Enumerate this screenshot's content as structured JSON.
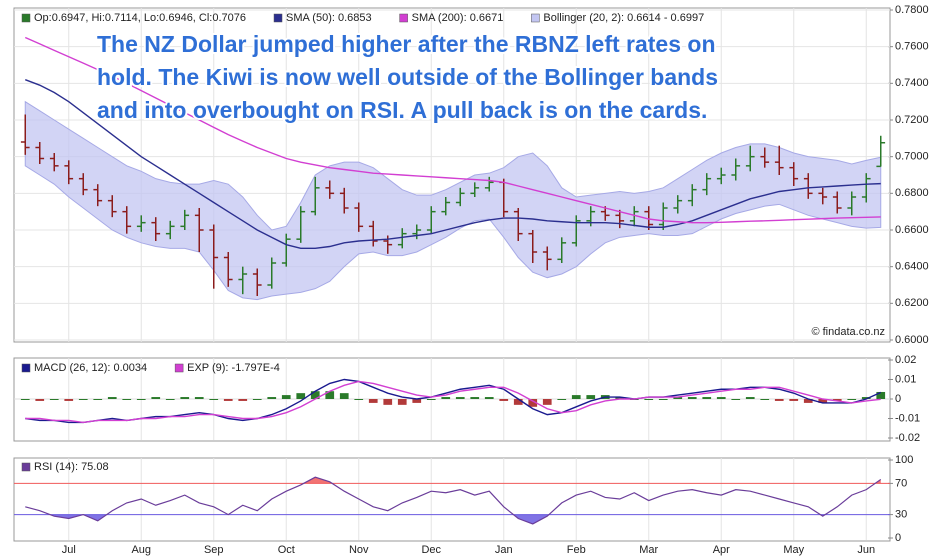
{
  "chart_data": [
    {
      "type": "ohlc",
      "annotations": [
        "The NZ Dollar jumped higher after the RBNZ left rates on",
        "hold. The Kiwi is now well outside of the Bollinger bands",
        "and into overbought on RSI. A pull back is on the cards."
      ],
      "watermark": "© findata.co.nz",
      "down_color": "#8b1c1c",
      "ylim": [
        0.6,
        0.78
      ],
      "yticks": [
        {
          "value": 0.6,
          "label": "0.6000"
        },
        {
          "value": 0.62,
          "label": "0.6200"
        },
        {
          "value": 0.64,
          "label": "0.6400"
        },
        {
          "value": 0.66,
          "label": "0.6600"
        },
        {
          "value": 0.68,
          "label": "0.6800"
        },
        {
          "value": 0.7,
          "label": "0.7000"
        },
        {
          "value": 0.72,
          "label": "0.7200"
        },
        {
          "value": 0.74,
          "label": "0.7400"
        },
        {
          "value": 0.76,
          "label": "0.7600"
        },
        {
          "value": 0.78,
          "label": "0.7800"
        }
      ],
      "grid": true,
      "series": [
        {
          "name": "Op:0.6947, Hi:0.7114, Lo:0.6946, Cl:0.7076",
          "color": "#2a7a2a",
          "open": [
            0.708,
            0.705,
            0.699,
            0.695,
            0.688,
            0.682,
            0.676,
            0.67,
            0.662,
            0.664,
            0.658,
            0.662,
            0.668,
            0.66,
            0.645,
            0.633,
            0.636,
            0.63,
            0.642,
            0.655,
            0.67,
            0.683,
            0.68,
            0.672,
            0.662,
            0.654,
            0.652,
            0.658,
            0.66,
            0.67,
            0.675,
            0.68,
            0.683,
            0.686,
            0.67,
            0.658,
            0.648,
            0.644,
            0.653,
            0.665,
            0.67,
            0.668,
            0.665,
            0.67,
            0.663,
            0.672,
            0.676,
            0.682,
            0.688,
            0.69,
            0.695,
            0.7,
            0.697,
            0.694,
            0.688,
            0.68,
            0.678,
            0.672,
            0.678,
            0.6947
          ],
          "high": [
            0.723,
            0.708,
            0.702,
            0.698,
            0.691,
            0.685,
            0.679,
            0.673,
            0.668,
            0.667,
            0.665,
            0.671,
            0.672,
            0.663,
            0.648,
            0.64,
            0.639,
            0.645,
            0.658,
            0.673,
            0.689,
            0.687,
            0.683,
            0.675,
            0.665,
            0.657,
            0.661,
            0.663,
            0.673,
            0.678,
            0.683,
            0.686,
            0.689,
            0.688,
            0.672,
            0.66,
            0.651,
            0.656,
            0.668,
            0.673,
            0.673,
            0.671,
            0.673,
            0.673,
            0.675,
            0.679,
            0.685,
            0.691,
            0.694,
            0.699,
            0.706,
            0.705,
            0.706,
            0.697,
            0.691,
            0.683,
            0.681,
            0.681,
            0.691,
            0.7114
          ],
          "low": [
            0.701,
            0.696,
            0.692,
            0.685,
            0.679,
            0.673,
            0.667,
            0.658,
            0.659,
            0.654,
            0.655,
            0.66,
            0.648,
            0.628,
            0.629,
            0.625,
            0.624,
            0.628,
            0.64,
            0.653,
            0.668,
            0.677,
            0.669,
            0.659,
            0.651,
            0.647,
            0.65,
            0.655,
            0.658,
            0.668,
            0.673,
            0.678,
            0.681,
            0.667,
            0.654,
            0.642,
            0.638,
            0.642,
            0.651,
            0.662,
            0.665,
            0.661,
            0.662,
            0.66,
            0.66,
            0.669,
            0.673,
            0.679,
            0.685,
            0.687,
            0.692,
            0.694,
            0.69,
            0.684,
            0.677,
            0.674,
            0.669,
            0.668,
            0.675,
            0.6946
          ],
          "close": [
            0.705,
            0.699,
            0.695,
            0.688,
            0.682,
            0.676,
            0.67,
            0.662,
            0.664,
            0.658,
            0.662,
            0.668,
            0.66,
            0.645,
            0.633,
            0.636,
            0.63,
            0.642,
            0.655,
            0.67,
            0.683,
            0.68,
            0.672,
            0.662,
            0.654,
            0.652,
            0.658,
            0.66,
            0.67,
            0.675,
            0.68,
            0.683,
            0.686,
            0.67,
            0.658,
            0.648,
            0.644,
            0.653,
            0.665,
            0.67,
            0.668,
            0.665,
            0.67,
            0.663,
            0.672,
            0.676,
            0.682,
            0.688,
            0.69,
            0.695,
            0.7,
            0.697,
            0.694,
            0.688,
            0.68,
            0.678,
            0.672,
            0.678,
            0.688,
            0.7076
          ]
        },
        {
          "name": "SMA (50): 0.6853",
          "color": "#2b2f8f",
          "values": [
            0.742,
            0.739,
            0.735,
            0.73,
            0.724,
            0.718,
            0.712,
            0.706,
            0.7,
            0.695,
            0.69,
            0.685,
            0.68,
            0.675,
            0.67,
            0.665,
            0.66,
            0.656,
            0.652,
            0.65,
            0.65,
            0.651,
            0.653,
            0.654,
            0.6545,
            0.655,
            0.656,
            0.657,
            0.658,
            0.66,
            0.662,
            0.664,
            0.6655,
            0.6665,
            0.6665,
            0.666,
            0.665,
            0.6645,
            0.664,
            0.664,
            0.664,
            0.6635,
            0.6625,
            0.6615,
            0.6615,
            0.663,
            0.665,
            0.668,
            0.671,
            0.674,
            0.677,
            0.679,
            0.681,
            0.682,
            0.683,
            0.6835,
            0.684,
            0.6845,
            0.685,
            0.6853
          ]
        },
        {
          "name": "SMA (200): 0.6671",
          "color": "#d23fd2",
          "values": [
            0.765,
            0.7615,
            0.758,
            0.7545,
            0.751,
            0.7475,
            0.744,
            0.74,
            0.736,
            0.732,
            0.728,
            0.724,
            0.72,
            0.716,
            0.712,
            0.7085,
            0.705,
            0.702,
            0.699,
            0.697,
            0.6955,
            0.694,
            0.693,
            0.692,
            0.691,
            0.6905,
            0.69,
            0.6895,
            0.689,
            0.6885,
            0.688,
            0.6875,
            0.687,
            0.686,
            0.684,
            0.682,
            0.68,
            0.678,
            0.676,
            0.674,
            0.672,
            0.67,
            0.668,
            0.666,
            0.665,
            0.6645,
            0.664,
            0.664,
            0.6642,
            0.6645,
            0.6648,
            0.665,
            0.6653,
            0.6656,
            0.6659,
            0.6662,
            0.6665,
            0.6667,
            0.6669,
            0.6671
          ]
        },
        {
          "name": "Bollinger (20, 2): 0.6614 - 0.6997",
          "color": "#c3c6f2",
          "upper": [
            0.73,
            0.725,
            0.72,
            0.715,
            0.71,
            0.705,
            0.7,
            0.695,
            0.692,
            0.688,
            0.686,
            0.685,
            0.685,
            0.687,
            0.685,
            0.678,
            0.668,
            0.66,
            0.662,
            0.675,
            0.69,
            0.695,
            0.697,
            0.697,
            0.694,
            0.688,
            0.682,
            0.679,
            0.679,
            0.682,
            0.686,
            0.69,
            0.691,
            0.694,
            0.7,
            0.702,
            0.695,
            0.683,
            0.678,
            0.679,
            0.68,
            0.681,
            0.68,
            0.681,
            0.683,
            0.688,
            0.693,
            0.698,
            0.702,
            0.705,
            0.707,
            0.707,
            0.705,
            0.702,
            0.7,
            0.699,
            0.698,
            0.696,
            0.698,
            0.6997
          ],
          "lower": [
            0.695,
            0.69,
            0.685,
            0.678,
            0.672,
            0.666,
            0.66,
            0.656,
            0.653,
            0.651,
            0.65,
            0.65,
            0.648,
            0.638,
            0.627,
            0.623,
            0.622,
            0.624,
            0.625,
            0.626,
            0.628,
            0.632,
            0.64,
            0.647,
            0.648,
            0.646,
            0.646,
            0.648,
            0.652,
            0.656,
            0.661,
            0.665,
            0.666,
            0.656,
            0.645,
            0.637,
            0.634,
            0.636,
            0.64,
            0.647,
            0.653,
            0.656,
            0.657,
            0.658,
            0.657,
            0.657,
            0.658,
            0.662,
            0.666,
            0.669,
            0.671,
            0.673,
            0.674,
            0.671,
            0.668,
            0.666,
            0.664,
            0.662,
            0.661,
            0.6614
          ]
        }
      ]
    },
    {
      "type": "macd",
      "ylim": [
        -0.02,
        0.02
      ],
      "yticks": [
        -0.02,
        -0.01,
        0,
        0.01,
        0.02
      ],
      "series": [
        {
          "name": "MACD (26, 12): 0.0034",
          "color": "#1a1a8f",
          "values": [
            -0.01,
            -0.011,
            -0.011,
            -0.012,
            -0.012,
            -0.011,
            -0.01,
            -0.011,
            -0.01,
            -0.009,
            -0.009,
            -0.008,
            -0.007,
            -0.008,
            -0.01,
            -0.011,
            -0.01,
            -0.008,
            -0.005,
            -0.001,
            0.004,
            0.008,
            0.01,
            0.009,
            0.006,
            0.003,
            0.001,
            0,
            0.001,
            0.003,
            0.005,
            0.006,
            0.007,
            0.005,
            0,
            -0.005,
            -0.008,
            -0.007,
            -0.004,
            -0.001,
            0.001,
            0.001,
            0,
            0.001,
            0.001,
            0.002,
            0.003,
            0.004,
            0.005,
            0.005,
            0.006,
            0.006,
            0.005,
            0.003,
            0,
            -0.002,
            -0.002,
            -0.002,
            0,
            0.0034
          ]
        },
        {
          "name": "EXP (9): -1.797E-4",
          "color": "#d23fd2",
          "values": [
            -0.01,
            -0.01,
            -0.011,
            -0.011,
            -0.012,
            -0.011,
            -0.011,
            -0.011,
            -0.01,
            -0.01,
            -0.009,
            -0.009,
            -0.008,
            -0.008,
            -0.009,
            -0.01,
            -0.01,
            -0.009,
            -0.007,
            -0.004,
            0,
            0.004,
            0.007,
            0.009,
            0.008,
            0.006,
            0.004,
            0.002,
            0.001,
            0.002,
            0.004,
            0.005,
            0.006,
            0.006,
            0.003,
            -0.001,
            -0.005,
            -0.007,
            -0.006,
            -0.003,
            -0.001,
            0,
            0,
            0.001,
            0.001,
            0.001,
            0.002,
            0.003,
            0.004,
            0.005,
            0.005,
            0.006,
            0.006,
            0.004,
            0.002,
            0,
            -0.001,
            -0.002,
            -0.001,
            -0.0001797
          ]
        }
      ],
      "histogram": {
        "up_color": "#2a7a2a",
        "down_color": "#b23a3a",
        "values": [
          0,
          -0.001,
          0,
          -0.001,
          0,
          0,
          0.001,
          0,
          0,
          0.001,
          0,
          0.001,
          0.001,
          0,
          -0.001,
          -0.001,
          0,
          0.001,
          0.002,
          0.003,
          0.004,
          0.004,
          0.003,
          0,
          -0.002,
          -0.003,
          -0.003,
          -0.002,
          0,
          0.001,
          0.001,
          0.001,
          0.001,
          -0.001,
          -0.003,
          -0.004,
          -0.003,
          0,
          0.002,
          0.002,
          0.002,
          0.001,
          0,
          0,
          0,
          0.001,
          0.001,
          0.001,
          0.001,
          0,
          0.001,
          0,
          -0.001,
          -0.001,
          -0.002,
          -0.002,
          -0.001,
          0,
          0.001,
          0.0036
        ]
      }
    },
    {
      "type": "rsi",
      "ylim": [
        0,
        100
      ],
      "yticks": [
        0,
        30,
        70,
        100
      ],
      "overbought": 70,
      "overbought_color": "#f05a5a",
      "oversold": 30,
      "oversold_color": "#6a5ae0",
      "categories": [
        null,
        null,
        null,
        "Jul",
        null,
        null,
        null,
        null,
        "Aug",
        null,
        null,
        null,
        null,
        "Sep",
        null,
        null,
        null,
        null,
        "Oct",
        null,
        null,
        null,
        null,
        "Nov",
        null,
        null,
        null,
        null,
        "Dec",
        null,
        null,
        null,
        null,
        "Jan",
        null,
        null,
        null,
        null,
        "Feb",
        null,
        null,
        null,
        null,
        "Mar",
        null,
        null,
        null,
        null,
        "Apr",
        null,
        null,
        null,
        null,
        "May",
        null,
        null,
        null,
        null,
        "Jun",
        null
      ],
      "series": [
        {
          "name": "RSI (14): 75.08",
          "color": "#6a3d9a",
          "values": [
            40,
            35,
            28,
            25,
            30,
            22,
            35,
            45,
            50,
            42,
            48,
            55,
            45,
            40,
            30,
            42,
            35,
            50,
            60,
            68,
            78,
            72,
            60,
            50,
            40,
            35,
            45,
            52,
            60,
            58,
            62,
            55,
            60,
            40,
            25,
            18,
            28,
            45,
            55,
            60,
            52,
            50,
            58,
            48,
            55,
            60,
            62,
            58,
            55,
            62,
            60,
            55,
            50,
            45,
            40,
            28,
            40,
            55,
            62,
            75.08
          ]
        }
      ]
    }
  ]
}
